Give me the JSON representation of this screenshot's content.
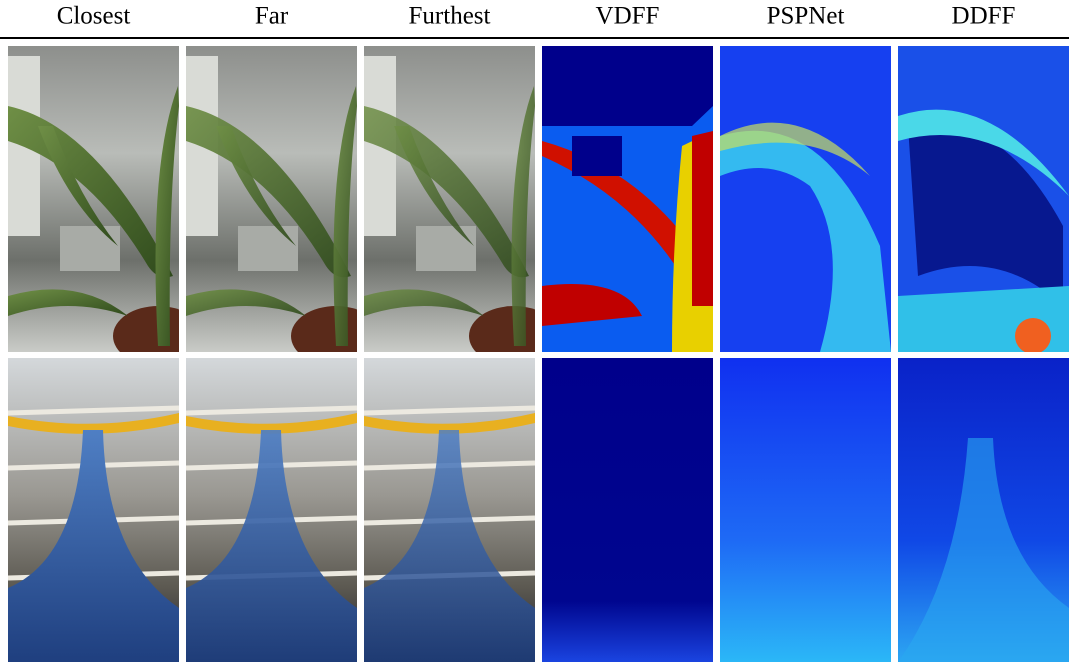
{
  "figure": {
    "columns": [
      "Closest",
      "Far",
      "Furthest",
      "VDFF",
      "PSPNet",
      "DDFF"
    ]
  }
}
